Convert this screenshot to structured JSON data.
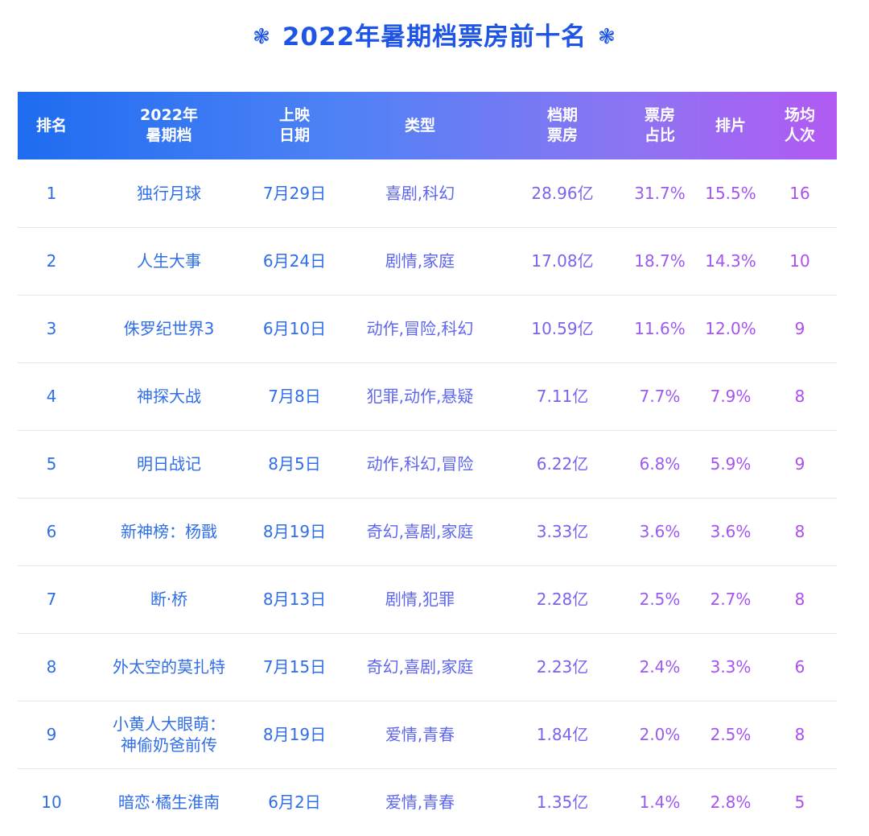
{
  "title": "2022年暑期档票房前十名",
  "title_icon": "flower-icon",
  "colors": {
    "title": "#1f55e6",
    "header_gradient_start": "#1e6cf0",
    "header_gradient_end": "#b25af2"
  },
  "chart_data": {
    "type": "table",
    "title": "2022年暑期档票房前十名",
    "columns": [
      "排名",
      "2022年\n暑期档",
      "上映\n日期",
      "类型",
      "档期\n票房",
      "票房\n占比",
      "排片",
      "场均\n人次"
    ],
    "rows": [
      [
        "1",
        "独行月球",
        "7月29日",
        "喜剧,科幻",
        "28.96亿",
        "31.7%",
        "15.5%",
        "16"
      ],
      [
        "2",
        "人生大事",
        "6月24日",
        "剧情,家庭",
        "17.08亿",
        "18.7%",
        "14.3%",
        "10"
      ],
      [
        "3",
        "侏罗纪世界3",
        "6月10日",
        "动作,冒险,科幻",
        "10.59亿",
        "11.6%",
        "12.0%",
        "9"
      ],
      [
        "4",
        "神探大战",
        "7月8日",
        "犯罪,动作,悬疑",
        "7.11亿",
        "7.7%",
        "7.9%",
        "8"
      ],
      [
        "5",
        "明日战记",
        "8月5日",
        "动作,科幻,冒险",
        "6.22亿",
        "6.8%",
        "5.9%",
        "9"
      ],
      [
        "6",
        "新神榜：杨戬",
        "8月19日",
        "奇幻,喜剧,家庭",
        "3.33亿",
        "3.6%",
        "3.6%",
        "8"
      ],
      [
        "7",
        "断·桥",
        "8月13日",
        "剧情,犯罪",
        "2.28亿",
        "2.5%",
        "2.7%",
        "8"
      ],
      [
        "8",
        "外太空的莫扎特",
        "7月15日",
        "奇幻,喜剧,家庭",
        "2.23亿",
        "2.4%",
        "3.3%",
        "6"
      ],
      [
        "9",
        "小黄人大眼萌：\n神偷奶爸前传",
        "8月19日",
        "爱情,青春",
        "1.84亿",
        "2.0%",
        "2.5%",
        "8"
      ],
      [
        "10",
        "暗恋·橘生淮南",
        "6月2日",
        "爱情,青春",
        "1.35亿",
        "1.4%",
        "2.8%",
        "5"
      ]
    ]
  }
}
